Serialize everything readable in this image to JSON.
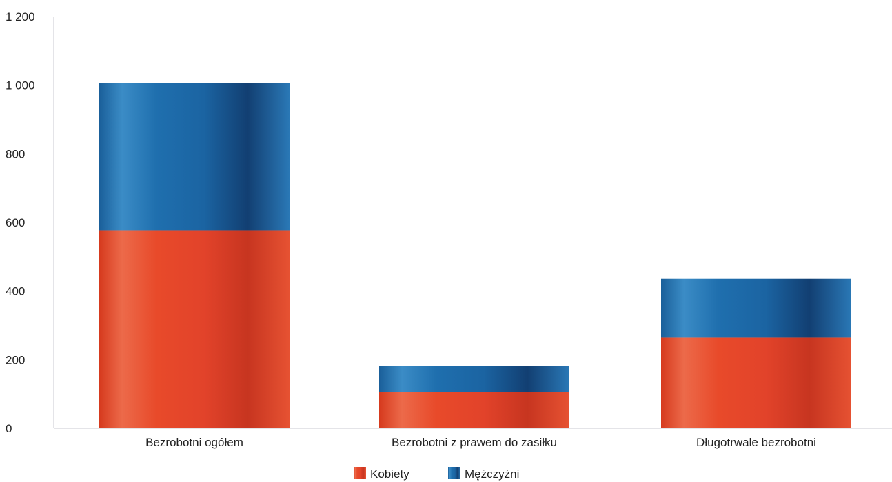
{
  "chart_data": {
    "type": "bar",
    "stacked": true,
    "categories": [
      "Bezrobotni ogółem",
      "Bezrobotni z prawem do zasiłku",
      "Długotrwale bezrobotni"
    ],
    "series": [
      {
        "name": "Kobiety",
        "values": [
          577,
          106,
          264
        ],
        "color": "#e84a2a"
      },
      {
        "name": "Mężczyźni",
        "values": [
          430,
          75,
          172
        ],
        "color": "#1f6fae"
      }
    ],
    "y_ticks": [
      0,
      200,
      400,
      600,
      800,
      1000,
      1200
    ],
    "y_tick_labels": [
      "0",
      "200",
      "400",
      "600",
      "800",
      "1 000",
      "1 200"
    ],
    "ylim": [
      0,
      1200
    ],
    "title": "",
    "xlabel": "",
    "ylabel": "",
    "grid": false,
    "legend_position": "bottom-center"
  }
}
